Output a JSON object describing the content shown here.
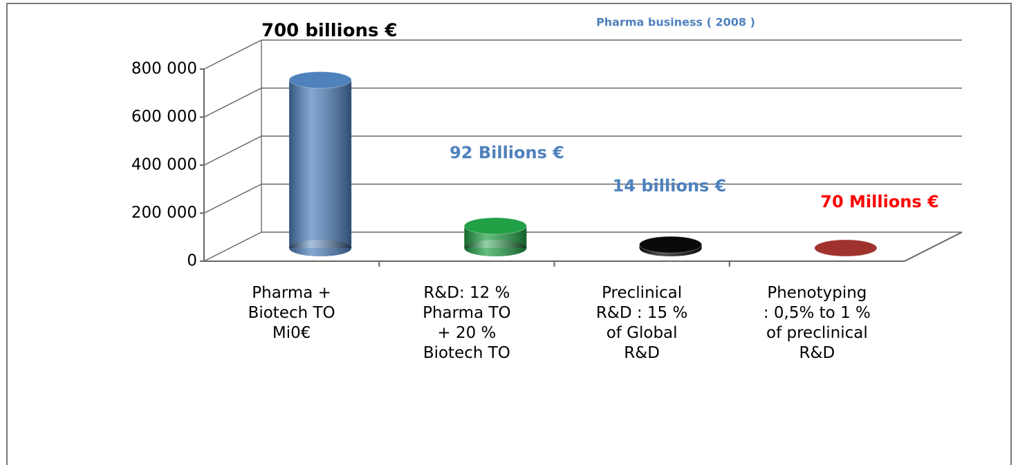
{
  "chart_data": {
    "type": "bar3d",
    "title": "Pharma business ( 2008 )",
    "categories": [
      "Pharma   +\nBiotech TO\nMi0€",
      "R&D: 12 %\nPharma  TO\n+  20 %\nBiotech TO",
      "Preclinical\nR&D : 15 %\nof Global\nR&D",
      "Phenotyping\n: 0,5%  to 1 %\nof preclinical\nR&D"
    ],
    "values": [
      700000,
      92000,
      14000,
      70
    ],
    "colors": [
      "#4f81bd",
      "#21a046",
      "#0a0a0a",
      "#a0322d"
    ],
    "ylim": [
      0,
      800000
    ],
    "yticks": [
      0,
      {
        "value": 200000,
        "label": "200 000"
      },
      {
        "value": 400000,
        "label": "400 000"
      },
      {
        "value": 600000,
        "label": "600 000"
      },
      {
        "value": 800000,
        "label": "800 000"
      }
    ],
    "grid": true,
    "annotations": [
      {
        "text": "700 billions  €",
        "color": "#000000"
      },
      {
        "text": "92  Billions €",
        "color": "#4f81bd"
      },
      {
        "text": "14 billions €",
        "color": "#4f81bd"
      },
      {
        "text": "70  Millions €",
        "color": "#ff0000"
      }
    ]
  }
}
